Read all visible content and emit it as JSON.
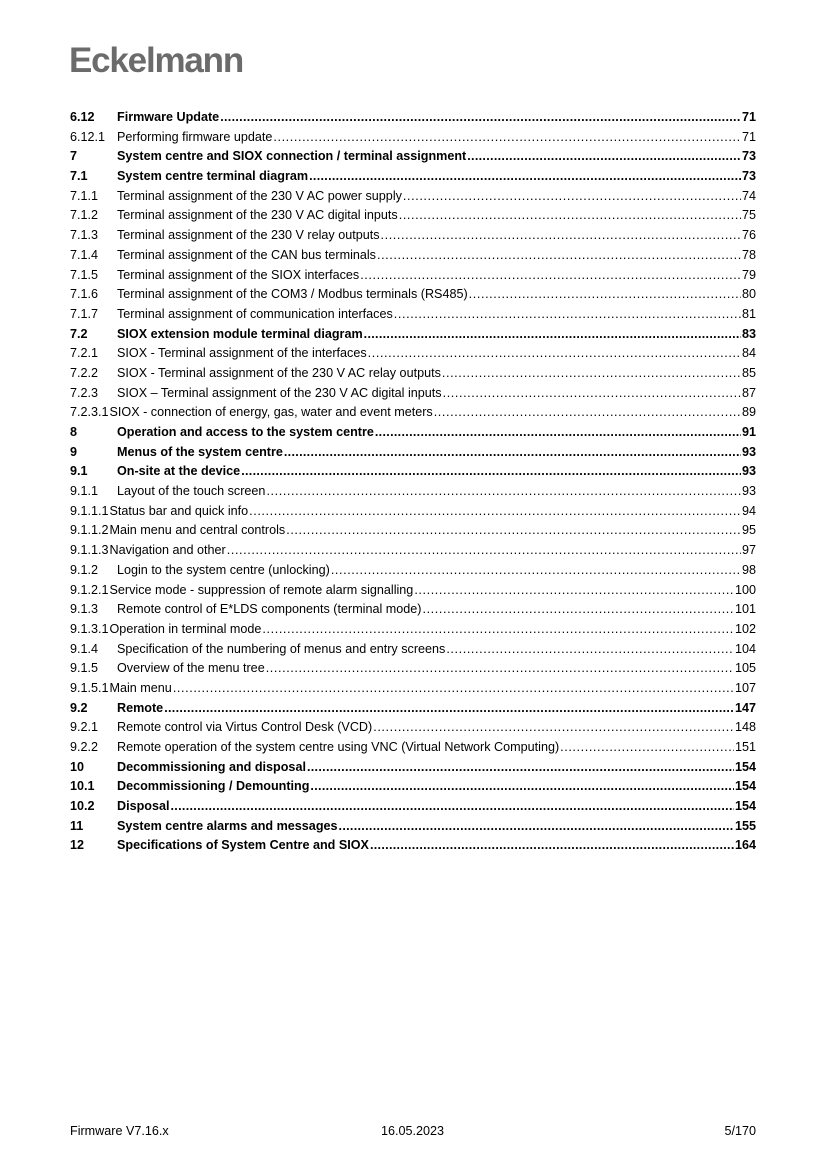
{
  "header": {
    "logo": "Eckelmann"
  },
  "toc": [
    {
      "num": "6.12",
      "title": "Firmware Update",
      "page": "71",
      "bold": true
    },
    {
      "num": "6.12.1",
      "title": "Performing firmware update",
      "page": "71",
      "bold": false
    },
    {
      "num": "7",
      "title": "System centre and SIOX connection / terminal assignment",
      "page": "73",
      "bold": true
    },
    {
      "num": "7.1",
      "title": "System centre terminal diagram",
      "page": "73",
      "bold": true
    },
    {
      "num": "7.1.1",
      "title": "Terminal assignment of the 230 V AC power supply",
      "page": "74",
      "bold": false
    },
    {
      "num": "7.1.2",
      "title": "Terminal assignment of the 230 V AC digital inputs",
      "page": "75",
      "bold": false
    },
    {
      "num": "7.1.3",
      "title": "Terminal assignment of the 230 V relay outputs",
      "page": "76",
      "bold": false
    },
    {
      "num": "7.1.4",
      "title": "Terminal assignment of the CAN bus terminals",
      "page": "78",
      "bold": false
    },
    {
      "num": "7.1.5",
      "title": "Terminal assignment of the SIOX interfaces",
      "page": "79",
      "bold": false
    },
    {
      "num": "7.1.6",
      "title": "Terminal assignment of the COM3 / Modbus terminals (RS485)",
      "page": "80",
      "bold": false
    },
    {
      "num": "7.1.7",
      "title": "Terminal assignment of communication interfaces",
      "page": "81",
      "bold": false
    },
    {
      "num": "7.2",
      "title": "SIOX extension module terminal diagram",
      "page": "83",
      "bold": true
    },
    {
      "num": "7.2.1",
      "title": "SIOX - Terminal assignment of the interfaces",
      "page": "84",
      "bold": false
    },
    {
      "num": "7.2.2",
      "title": "SIOX - Terminal assignment of the 230 V AC relay outputs",
      "page": "85",
      "bold": false
    },
    {
      "num": "7.2.3",
      "title": "SIOX – Terminal assignment of the 230 V AC digital inputs",
      "page": "87",
      "bold": false
    },
    {
      "num": "7.2.3.1",
      "title": "SIOX - connection of energy, gas, water and event meters",
      "page": "89",
      "bold": false
    },
    {
      "num": "8",
      "title": "Operation and access to the system centre",
      "page": "91",
      "bold": true
    },
    {
      "num": "9",
      "title": "Menus of the system centre",
      "page": "93",
      "bold": true
    },
    {
      "num": "9.1",
      "title": "On-site at the device",
      "page": "93",
      "bold": true
    },
    {
      "num": "9.1.1",
      "title": "Layout of the touch screen",
      "page": "93",
      "bold": false
    },
    {
      "num": "9.1.1.1",
      "title": "Status bar and quick info",
      "page": "94",
      "bold": false
    },
    {
      "num": "9.1.1.2",
      "title": "Main menu and central controls",
      "page": "95",
      "bold": false
    },
    {
      "num": "9.1.1.3",
      "title": "Navigation and other",
      "page": "97",
      "bold": false
    },
    {
      "num": "9.1.2",
      "title": "Login to the system centre (unlocking)",
      "page": "98",
      "bold": false
    },
    {
      "num": "9.1.2.1",
      "title": "Service mode - suppression of remote alarm signalling",
      "page": "100",
      "bold": false
    },
    {
      "num": "9.1.3",
      "title": "Remote control of E*LDS components (terminal mode)",
      "page": "101",
      "bold": false
    },
    {
      "num": "9.1.3.1",
      "title": "Operation in terminal mode",
      "page": "102",
      "bold": false
    },
    {
      "num": "9.1.4",
      "title": "Specification of the numbering of menus and entry screens",
      "page": "104",
      "bold": false
    },
    {
      "num": "9.1.5",
      "title": "Overview of the menu tree",
      "page": "105",
      "bold": false
    },
    {
      "num": "9.1.5.1",
      "title": "Main menu",
      "page": "107",
      "bold": false
    },
    {
      "num": "9.2",
      "title": "Remote",
      "page": "147",
      "bold": true
    },
    {
      "num": "9.2.1",
      "title": "Remote control via Virtus Control Desk (VCD)",
      "page": "148",
      "bold": false
    },
    {
      "num": "9.2.2",
      "title": "Remote operation of the system centre using VNC (Virtual Network Computing)",
      "page": "151",
      "bold": false
    },
    {
      "num": "10",
      "title": "Decommissioning and disposal",
      "page": "154",
      "bold": true
    },
    {
      "num": "10.1",
      "title": "Decommissioning / Demounting",
      "page": "154",
      "bold": true
    },
    {
      "num": "10.2",
      "title": "Disposal",
      "page": "154",
      "bold": true
    },
    {
      "num": "11",
      "title": "System centre alarms and messages",
      "page": "155",
      "bold": true
    },
    {
      "num": "12",
      "title": "Specifications of System Centre and SIOX",
      "page": "164",
      "bold": true
    }
  ],
  "footer": {
    "firmware": "Firmware V7.16.x",
    "date": "16.05.2023",
    "page": "5/170"
  }
}
